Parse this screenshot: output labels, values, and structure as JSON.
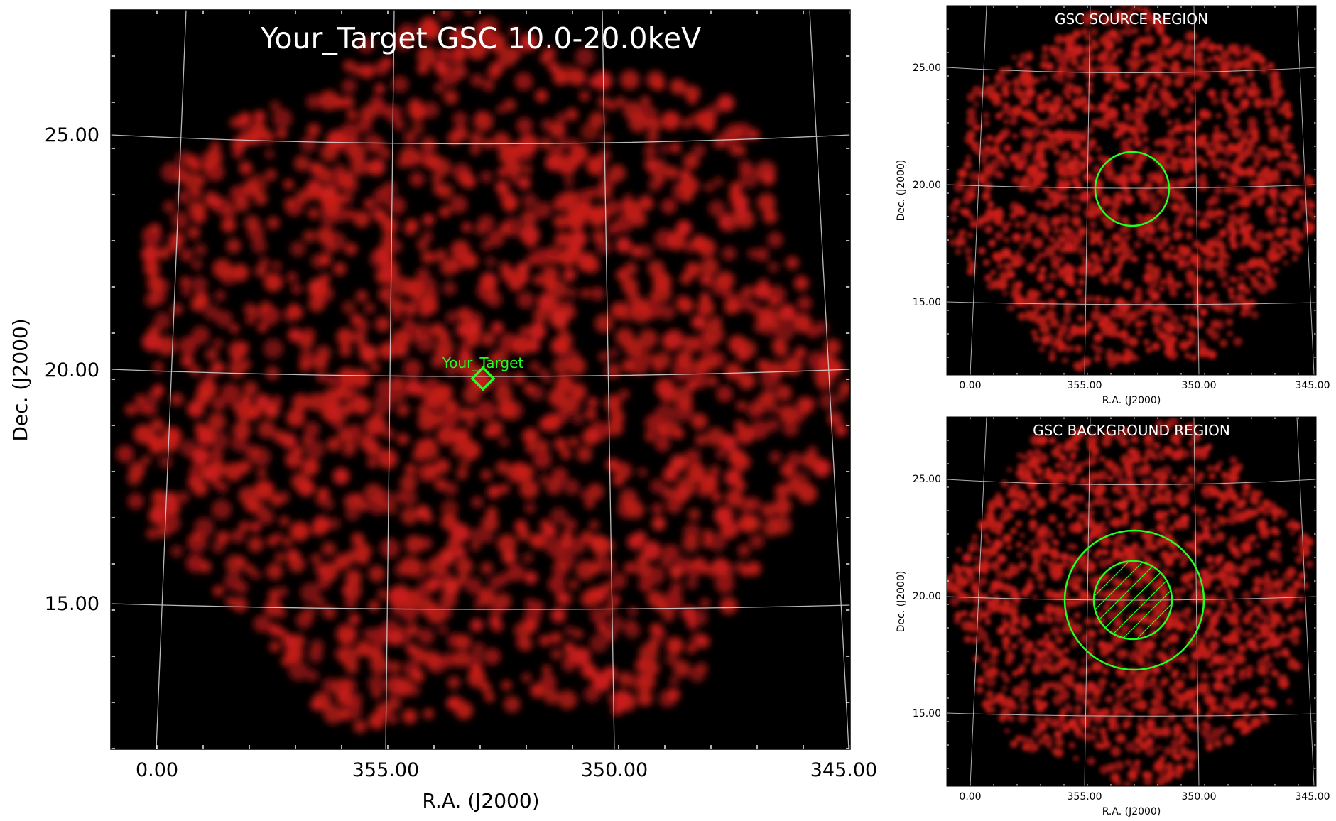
{
  "colors": {
    "background": "#000000",
    "emission": "#cc1f1a",
    "grid": "#d9d9d9",
    "region": "#22ff22",
    "title_text": "#ffffff",
    "axis_text": "#111111"
  },
  "main_panel": {
    "title": "Your_Target GSC 10.0-20.0keV",
    "xlabel": "R.A. (J2000)",
    "ylabel": "Dec. (J2000)",
    "x_ticks": [
      "0.00",
      "355.00",
      "350.00",
      "345.00"
    ],
    "y_ticks": [
      "25.00",
      "20.00",
      "15.00"
    ],
    "target_label": "Your_Target",
    "target_marker": "diamond"
  },
  "source_panel": {
    "title": "GSC SOURCE REGION",
    "xlabel": "R.A. (J2000)",
    "ylabel": "Dec. (J2000)",
    "x_ticks": [
      "0.00",
      "355.00",
      "350.00",
      "345.00"
    ],
    "y_ticks": [
      "25.00",
      "20.00",
      "15.00"
    ],
    "region": "circle"
  },
  "background_panel": {
    "title": "GSC BACKGROUND REGION",
    "xlabel": "R.A. (J2000)",
    "ylabel": "Dec. (J2000)",
    "x_ticks": [
      "0.00",
      "355.00",
      "350.00",
      "345.00"
    ],
    "y_ticks": [
      "25.00",
      "20.00",
      "15.00"
    ],
    "region": "annulus with hatched excluded inner circle"
  }
}
